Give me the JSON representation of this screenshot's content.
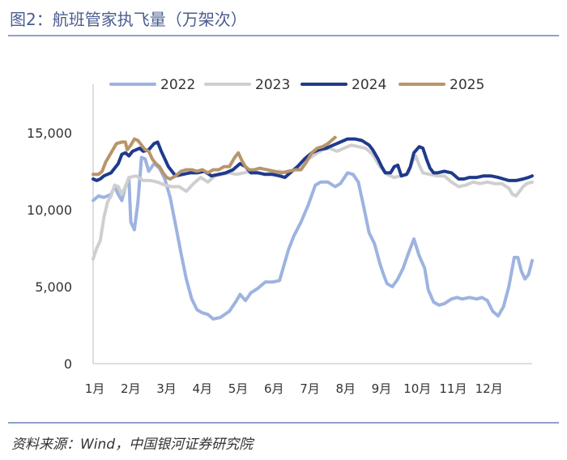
{
  "header": {
    "title": "图2：航班管家执飞量（万架次）"
  },
  "footer": {
    "source": "资料来源：Wind，中国银河证券研究院"
  },
  "chart_data": {
    "type": "line",
    "title": "",
    "xlabel": "",
    "ylabel": "",
    "ylim": [
      0,
      15000
    ],
    "yticks": [
      0,
      5000,
      10000,
      15000
    ],
    "ytick_labels": [
      "0",
      "5,000",
      "10,000",
      "15,000"
    ],
    "xtick_labels": [
      "1月",
      "2月",
      "3月",
      "4月",
      "5月",
      "6月",
      "7月",
      "8月",
      "9月",
      "10月",
      "11月",
      "12月"
    ],
    "x_unit": "month (1 = early January)",
    "grid": false,
    "legend_position": "top",
    "series": [
      {
        "name": "2022",
        "color": "#9db3e0",
        "points": [
          [
            1.0,
            10600
          ],
          [
            1.15,
            10900
          ],
          [
            1.3,
            10800
          ],
          [
            1.5,
            11000
          ],
          [
            1.6,
            11500
          ],
          [
            1.7,
            11000
          ],
          [
            1.8,
            10600
          ],
          [
            1.9,
            11500
          ],
          [
            2.0,
            12000
          ],
          [
            2.05,
            9200
          ],
          [
            2.15,
            8700
          ],
          [
            2.25,
            10500
          ],
          [
            2.35,
            13400
          ],
          [
            2.45,
            13300
          ],
          [
            2.55,
            12500
          ],
          [
            2.7,
            13000
          ],
          [
            2.85,
            12700
          ],
          [
            3.0,
            12000
          ],
          [
            3.15,
            10800
          ],
          [
            3.3,
            9000
          ],
          [
            3.45,
            7200
          ],
          [
            3.6,
            5500
          ],
          [
            3.75,
            4200
          ],
          [
            3.9,
            3500
          ],
          [
            4.05,
            3300
          ],
          [
            4.2,
            3200
          ],
          [
            4.35,
            2900
          ],
          [
            4.55,
            3000
          ],
          [
            4.8,
            3400
          ],
          [
            5.0,
            4100
          ],
          [
            5.1,
            4500
          ],
          [
            5.25,
            4100
          ],
          [
            5.4,
            4600
          ],
          [
            5.6,
            4900
          ],
          [
            5.8,
            5300
          ],
          [
            6.0,
            5300
          ],
          [
            6.2,
            5400
          ],
          [
            6.3,
            6200
          ],
          [
            6.45,
            7400
          ],
          [
            6.6,
            8300
          ],
          [
            6.8,
            9200
          ],
          [
            7.0,
            10300
          ],
          [
            7.2,
            11600
          ],
          [
            7.35,
            11800
          ],
          [
            7.55,
            11800
          ],
          [
            7.75,
            11500
          ],
          [
            7.9,
            11700
          ],
          [
            8.1,
            12400
          ],
          [
            8.25,
            12300
          ],
          [
            8.4,
            11800
          ],
          [
            8.55,
            10200
          ],
          [
            8.7,
            8500
          ],
          [
            8.85,
            7800
          ],
          [
            9.0,
            6500
          ],
          [
            9.1,
            5800
          ],
          [
            9.2,
            5200
          ],
          [
            9.35,
            5000
          ],
          [
            9.5,
            5500
          ],
          [
            9.65,
            6200
          ],
          [
            9.8,
            7200
          ],
          [
            9.95,
            8100
          ],
          [
            10.1,
            7000
          ],
          [
            10.25,
            6200
          ],
          [
            10.35,
            4800
          ],
          [
            10.5,
            4000
          ],
          [
            10.65,
            3800
          ],
          [
            10.8,
            3900
          ],
          [
            11.0,
            4200
          ],
          [
            11.15,
            4300
          ],
          [
            11.3,
            4200
          ],
          [
            11.5,
            4300
          ],
          [
            11.7,
            4200
          ],
          [
            11.85,
            4300
          ],
          [
            12.0,
            4100
          ],
          [
            12.15,
            3400
          ],
          [
            12.3,
            3100
          ],
          [
            12.45,
            3700
          ],
          [
            12.6,
            5000
          ],
          [
            12.75,
            6900
          ],
          [
            12.85,
            6900
          ],
          [
            12.95,
            6000
          ],
          [
            13.05,
            5500
          ],
          [
            13.15,
            5800
          ],
          [
            13.25,
            6700
          ]
        ]
      },
      {
        "name": "2023",
        "color": "#cfcfcf",
        "points": [
          [
            1.0,
            6800
          ],
          [
            1.1,
            7500
          ],
          [
            1.2,
            8000
          ],
          [
            1.3,
            9500
          ],
          [
            1.4,
            10500
          ],
          [
            1.5,
            10900
          ],
          [
            1.6,
            11600
          ],
          [
            1.7,
            11500
          ],
          [
            1.8,
            11000
          ],
          [
            1.9,
            11500
          ],
          [
            2.0,
            12100
          ],
          [
            2.2,
            12200
          ],
          [
            2.4,
            11900
          ],
          [
            2.6,
            11900
          ],
          [
            2.8,
            11800
          ],
          [
            3.0,
            11600
          ],
          [
            3.2,
            11500
          ],
          [
            3.4,
            11500
          ],
          [
            3.6,
            11200
          ],
          [
            3.8,
            11700
          ],
          [
            4.0,
            12100
          ],
          [
            4.2,
            11800
          ],
          [
            4.4,
            12200
          ],
          [
            4.6,
            12300
          ],
          [
            4.8,
            12400
          ],
          [
            5.0,
            12300
          ],
          [
            5.2,
            12400
          ],
          [
            5.4,
            12500
          ],
          [
            5.6,
            12400
          ],
          [
            5.8,
            12300
          ],
          [
            6.0,
            12400
          ],
          [
            6.2,
            12500
          ],
          [
            6.4,
            12400
          ],
          [
            6.6,
            12600
          ],
          [
            6.8,
            12900
          ],
          [
            7.0,
            13300
          ],
          [
            7.2,
            13600
          ],
          [
            7.4,
            13900
          ],
          [
            7.6,
            14000
          ],
          [
            7.8,
            13800
          ],
          [
            8.0,
            14000
          ],
          [
            8.2,
            14200
          ],
          [
            8.4,
            14100
          ],
          [
            8.6,
            14000
          ],
          [
            8.8,
            13600
          ],
          [
            9.0,
            12800
          ],
          [
            9.2,
            12300
          ],
          [
            9.4,
            12100
          ],
          [
            9.6,
            12200
          ],
          [
            9.8,
            12400
          ],
          [
            9.9,
            13100
          ],
          [
            10.0,
            13500
          ],
          [
            10.1,
            12900
          ],
          [
            10.2,
            12400
          ],
          [
            10.4,
            12300
          ],
          [
            10.6,
            12200
          ],
          [
            10.8,
            12200
          ],
          [
            11.0,
            11800
          ],
          [
            11.2,
            11500
          ],
          [
            11.4,
            11600
          ],
          [
            11.6,
            11800
          ],
          [
            11.8,
            11700
          ],
          [
            12.0,
            11800
          ],
          [
            12.2,
            11700
          ],
          [
            12.4,
            11700
          ],
          [
            12.6,
            11400
          ],
          [
            12.7,
            11000
          ],
          [
            12.8,
            10900
          ],
          [
            12.9,
            11200
          ],
          [
            13.0,
            11500
          ],
          [
            13.1,
            11700
          ],
          [
            13.25,
            11800
          ]
        ]
      },
      {
        "name": "2024",
        "color": "#1f3a8c",
        "points": [
          [
            1.0,
            12000
          ],
          [
            1.1,
            11900
          ],
          [
            1.2,
            12000
          ],
          [
            1.3,
            12200
          ],
          [
            1.5,
            12400
          ],
          [
            1.7,
            13000
          ],
          [
            1.8,
            13600
          ],
          [
            1.9,
            13700
          ],
          [
            2.0,
            13500
          ],
          [
            2.1,
            13800
          ],
          [
            2.2,
            13900
          ],
          [
            2.3,
            14000
          ],
          [
            2.4,
            13800
          ],
          [
            2.55,
            13900
          ],
          [
            2.7,
            14300
          ],
          [
            2.8,
            14400
          ],
          [
            2.9,
            13800
          ],
          [
            3.0,
            13300
          ],
          [
            3.1,
            12800
          ],
          [
            3.2,
            12500
          ],
          [
            3.3,
            12200
          ],
          [
            3.5,
            12300
          ],
          [
            3.7,
            12400
          ],
          [
            3.9,
            12400
          ],
          [
            4.1,
            12500
          ],
          [
            4.3,
            12200
          ],
          [
            4.5,
            12300
          ],
          [
            4.7,
            12400
          ],
          [
            4.9,
            12600
          ],
          [
            5.1,
            13000
          ],
          [
            5.25,
            12800
          ],
          [
            5.4,
            12400
          ],
          [
            5.6,
            12400
          ],
          [
            5.8,
            12300
          ],
          [
            6.0,
            12300
          ],
          [
            6.2,
            12200
          ],
          [
            6.35,
            12100
          ],
          [
            6.5,
            12400
          ],
          [
            6.7,
            12800
          ],
          [
            6.9,
            13300
          ],
          [
            7.1,
            13700
          ],
          [
            7.3,
            13900
          ],
          [
            7.5,
            14000
          ],
          [
            7.7,
            14200
          ],
          [
            7.9,
            14400
          ],
          [
            8.1,
            14600
          ],
          [
            8.3,
            14600
          ],
          [
            8.5,
            14500
          ],
          [
            8.7,
            14200
          ],
          [
            8.8,
            13900
          ],
          [
            8.95,
            13300
          ],
          [
            9.05,
            12800
          ],
          [
            9.15,
            12400
          ],
          [
            9.3,
            12400
          ],
          [
            9.4,
            12800
          ],
          [
            9.5,
            12900
          ],
          [
            9.6,
            12200
          ],
          [
            9.75,
            12300
          ],
          [
            9.85,
            12800
          ],
          [
            9.95,
            13700
          ],
          [
            10.1,
            14100
          ],
          [
            10.2,
            14000
          ],
          [
            10.3,
            13300
          ],
          [
            10.4,
            12700
          ],
          [
            10.5,
            12400
          ],
          [
            10.6,
            12400
          ],
          [
            10.8,
            12500
          ],
          [
            11.0,
            12400
          ],
          [
            11.2,
            12000
          ],
          [
            11.35,
            12000
          ],
          [
            11.5,
            12100
          ],
          [
            11.7,
            12100
          ],
          [
            11.9,
            12200
          ],
          [
            12.1,
            12200
          ],
          [
            12.3,
            12100
          ],
          [
            12.45,
            12000
          ],
          [
            12.6,
            11900
          ],
          [
            12.8,
            11900
          ],
          [
            13.0,
            12000
          ],
          [
            13.15,
            12100
          ],
          [
            13.25,
            12200
          ]
        ]
      },
      {
        "name": "2025",
        "color": "#b8956a",
        "points": [
          [
            1.0,
            12300
          ],
          [
            1.15,
            12300
          ],
          [
            1.25,
            12500
          ],
          [
            1.35,
            13100
          ],
          [
            1.5,
            13700
          ],
          [
            1.65,
            14300
          ],
          [
            1.8,
            14400
          ],
          [
            1.9,
            14400
          ],
          [
            1.95,
            13900
          ],
          [
            2.05,
            14200
          ],
          [
            2.15,
            14600
          ],
          [
            2.25,
            14500
          ],
          [
            2.35,
            14200
          ],
          [
            2.45,
            13900
          ],
          [
            2.55,
            13800
          ],
          [
            2.65,
            13300
          ],
          [
            2.75,
            13000
          ],
          [
            2.85,
            12800
          ],
          [
            2.95,
            12400
          ],
          [
            3.05,
            12100
          ],
          [
            3.15,
            12000
          ],
          [
            3.3,
            12200
          ],
          [
            3.45,
            12500
          ],
          [
            3.6,
            12600
          ],
          [
            3.75,
            12600
          ],
          [
            3.9,
            12500
          ],
          [
            4.05,
            12600
          ],
          [
            4.2,
            12400
          ],
          [
            4.35,
            12600
          ],
          [
            4.5,
            12600
          ],
          [
            4.65,
            12800
          ],
          [
            4.8,
            12800
          ],
          [
            4.95,
            13400
          ],
          [
            5.05,
            13700
          ],
          [
            5.15,
            13200
          ],
          [
            5.25,
            12800
          ],
          [
            5.35,
            12600
          ],
          [
            5.5,
            12600
          ],
          [
            5.65,
            12700
          ],
          [
            5.85,
            12600
          ],
          [
            6.05,
            12500
          ],
          [
            6.25,
            12400
          ],
          [
            6.45,
            12500
          ],
          [
            6.65,
            12600
          ],
          [
            6.8,
            12600
          ],
          [
            6.95,
            13100
          ],
          [
            7.1,
            13700
          ],
          [
            7.25,
            14000
          ],
          [
            7.4,
            14100
          ],
          [
            7.55,
            14300
          ],
          [
            7.65,
            14500
          ],
          [
            7.75,
            14700
          ]
        ]
      }
    ]
  }
}
